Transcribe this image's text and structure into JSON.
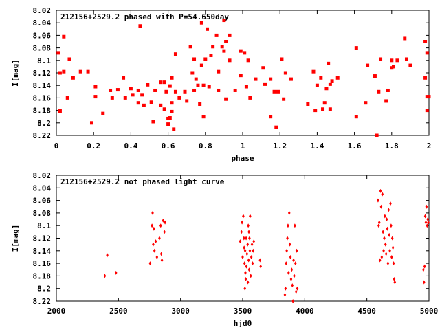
{
  "chart_data": [
    {
      "type": "scatter",
      "title": "212156+2529.2 phased with P=54.650day",
      "xlabel": "phase",
      "ylabel": "I[mag]",
      "xlim": [
        0,
        2
      ],
      "ylim": [
        8.22,
        8.02
      ],
      "y_inverted": true,
      "grid": false,
      "xticks": [
        0,
        0.2,
        0.4,
        0.6,
        0.8,
        1,
        1.2,
        1.4,
        1.6,
        1.8,
        2
      ],
      "xtick_labels": [
        "0",
        "0.2",
        "0.4",
        "0.6",
        "0.8",
        "1",
        "1.2",
        "1.4",
        "1.6",
        "1.8",
        "2"
      ],
      "yticks": [
        8.02,
        8.04,
        8.06,
        8.08,
        8.1,
        8.12,
        8.14,
        8.16,
        8.18,
        8.2,
        8.22
      ],
      "ytick_labels": [
        "8.02",
        "8.04",
        "8.06",
        "8.08",
        "8.1",
        "8.12",
        "8.14",
        "8.16",
        "8.18",
        "8.2",
        "8.22"
      ],
      "marker_color": "#ff0000",
      "points": [
        [
          0.01,
          8.088
        ],
        [
          0.02,
          8.12
        ],
        [
          0.02,
          8.181
        ],
        [
          0.04,
          8.118
        ],
        [
          0.04,
          8.062
        ],
        [
          0.06,
          8.16
        ],
        [
          0.07,
          8.098
        ],
        [
          0.09,
          8.128
        ],
        [
          0.13,
          8.118
        ],
        [
          0.17,
          8.118
        ],
        [
          0.19,
          8.2
        ],
        [
          0.21,
          8.142
        ],
        [
          0.21,
          8.158
        ],
        [
          0.25,
          8.185
        ],
        [
          0.29,
          8.148
        ],
        [
          0.3,
          8.16
        ],
        [
          0.33,
          8.147
        ],
        [
          0.36,
          8.128
        ],
        [
          0.37,
          8.16
        ],
        [
          0.4,
          8.145
        ],
        [
          0.41,
          8.155
        ],
        [
          0.44,
          8.148
        ],
        [
          0.44,
          8.168
        ],
        [
          0.45,
          8.045
        ],
        [
          0.46,
          8.155
        ],
        [
          0.47,
          8.172
        ],
        [
          0.49,
          8.139
        ],
        [
          0.51,
          8.167
        ],
        [
          0.52,
          8.198
        ],
        [
          0.53,
          8.148
        ],
        [
          0.56,
          8.172
        ],
        [
          0.56,
          8.135
        ],
        [
          0.58,
          8.135
        ],
        [
          0.58,
          8.178
        ],
        [
          0.59,
          8.15
        ],
        [
          0.6,
          8.193
        ],
        [
          0.6,
          8.202
        ],
        [
          0.61,
          8.192
        ],
        [
          0.61,
          8.141
        ],
        [
          0.62,
          8.128
        ],
        [
          0.62,
          8.168
        ],
        [
          0.62,
          8.182
        ],
        [
          0.63,
          8.21
        ],
        [
          0.64,
          8.15
        ],
        [
          0.64,
          8.09
        ],
        [
          0.66,
          8.16
        ],
        [
          0.69,
          8.15
        ],
        [
          0.7,
          8.165
        ],
        [
          0.72,
          8.078
        ],
        [
          0.73,
          8.12
        ],
        [
          0.74,
          8.098
        ],
        [
          0.74,
          8.148
        ],
        [
          0.75,
          8.13
        ],
        [
          0.76,
          8.14
        ],
        [
          0.77,
          8.17
        ],
        [
          0.78,
          8.04
        ],
        [
          0.78,
          8.108
        ],
        [
          0.79,
          8.19
        ],
        [
          0.79,
          8.14
        ],
        [
          0.8,
          8.098
        ],
        [
          0.81,
          8.05
        ],
        [
          0.82,
          8.142
        ],
        [
          0.83,
          8.092
        ],
        [
          0.84,
          8.078
        ],
        [
          0.86,
          8.06
        ],
        [
          0.87,
          8.118
        ],
        [
          0.87,
          8.148
        ],
        [
          0.89,
          8.078
        ],
        [
          0.9,
          8.036
        ],
        [
          0.9,
          8.085
        ],
        [
          0.91,
          8.07
        ],
        [
          0.91,
          8.162
        ],
        [
          0.93,
          8.06
        ],
        [
          0.93,
          8.1
        ],
        [
          0.96,
          8.148
        ],
        [
          0.99,
          8.124
        ],
        [
          0.99,
          8.085
        ],
        [
          1.01,
          8.088
        ],
        [
          1.02,
          8.142
        ],
        [
          1.03,
          8.1
        ],
        [
          1.04,
          8.16
        ],
        [
          1.07,
          8.13
        ],
        [
          1.11,
          8.112
        ],
        [
          1.12,
          8.138
        ],
        [
          1.15,
          8.19
        ],
        [
          1.15,
          8.13
        ],
        [
          1.17,
          8.15
        ],
        [
          1.18,
          8.207
        ],
        [
          1.19,
          8.15
        ],
        [
          1.21,
          8.098
        ],
        [
          1.22,
          8.162
        ],
        [
          1.23,
          8.12
        ],
        [
          1.26,
          8.13
        ],
        [
          1.35,
          8.17
        ],
        [
          1.38,
          8.118
        ],
        [
          1.39,
          8.18
        ],
        [
          1.4,
          8.14
        ],
        [
          1.42,
          8.128
        ],
        [
          1.43,
          8.178
        ],
        [
          1.44,
          8.168
        ],
        [
          1.45,
          8.145
        ],
        [
          1.46,
          8.105
        ],
        [
          1.47,
          8.138
        ],
        [
          1.47,
          8.178
        ],
        [
          1.48,
          8.133
        ],
        [
          1.51,
          8.128
        ],
        [
          1.61,
          8.19
        ],
        [
          1.61,
          8.08
        ],
        [
          1.66,
          8.168
        ],
        [
          1.67,
          8.108
        ],
        [
          1.71,
          8.125
        ],
        [
          1.72,
          8.22
        ],
        [
          1.73,
          8.15
        ],
        [
          1.74,
          8.098
        ],
        [
          1.77,
          8.165
        ],
        [
          1.78,
          8.148
        ],
        [
          1.8,
          8.112
        ],
        [
          1.8,
          8.1
        ],
        [
          1.81,
          8.11
        ],
        [
          1.83,
          8.1
        ],
        [
          1.87,
          8.065
        ],
        [
          1.88,
          8.098
        ],
        [
          1.9,
          8.108
        ],
        [
          1.98,
          8.07
        ],
        [
          1.99,
          8.158
        ],
        [
          1.99,
          8.18
        ],
        [
          2.0,
          8.158
        ],
        [
          1.99,
          8.088
        ],
        [
          1.98,
          8.128
        ]
      ]
    },
    {
      "type": "scatter",
      "title": "212156+2529.2 not phased light curve",
      "xlabel": "hjd0",
      "ylabel": "I[mag]",
      "xlim": [
        2000,
        5000
      ],
      "ylim": [
        8.22,
        8.02
      ],
      "y_inverted": true,
      "grid": false,
      "xticks": [
        2000,
        2500,
        3000,
        3500,
        4000,
        4500,
        5000
      ],
      "xtick_labels": [
        "2000",
        "2500",
        "3000",
        "3500",
        "4000",
        "4500",
        "5000"
      ],
      "yticks": [
        8.02,
        8.04,
        8.06,
        8.08,
        8.1,
        8.12,
        8.14,
        8.16,
        8.18,
        8.2,
        8.22
      ],
      "ytick_labels": [
        "8.02",
        "8.04",
        "8.06",
        "8.08",
        "8.1",
        "8.12",
        "8.14",
        "8.16",
        "8.18",
        "8.2",
        "8.22"
      ],
      "marker_color": "#ff0000",
      "points": [
        [
          2390,
          8.18
        ],
        [
          2410,
          8.147
        ],
        [
          2480,
          8.175
        ],
        [
          2755,
          8.16
        ],
        [
          2770,
          8.1
        ],
        [
          2775,
          8.08
        ],
        [
          2780,
          8.13
        ],
        [
          2785,
          8.105
        ],
        [
          2790,
          8.14
        ],
        [
          2800,
          8.125
        ],
        [
          2810,
          8.15
        ],
        [
          2830,
          8.12
        ],
        [
          2840,
          8.1
        ],
        [
          2845,
          8.145
        ],
        [
          2850,
          8.155
        ],
        [
          2860,
          8.092
        ],
        [
          2870,
          8.11
        ],
        [
          2875,
          8.095
        ],
        [
          3480,
          8.125
        ],
        [
          3490,
          8.11
        ],
        [
          3495,
          8.095
        ],
        [
          3500,
          8.15
        ],
        [
          3505,
          8.085
        ],
        [
          3510,
          8.12
        ],
        [
          3512,
          8.135
        ],
        [
          3515,
          8.16
        ],
        [
          3518,
          8.2
        ],
        [
          3520,
          8.14
        ],
        [
          3522,
          8.175
        ],
        [
          3525,
          8.185
        ],
        [
          3528,
          8.12
        ],
        [
          3530,
          8.165
        ],
        [
          3535,
          8.145
        ],
        [
          3540,
          8.13
        ],
        [
          3542,
          8.19
        ],
        [
          3545,
          8.1
        ],
        [
          3548,
          8.155
        ],
        [
          3550,
          8.11
        ],
        [
          3552,
          8.17
        ],
        [
          3555,
          8.12
        ],
        [
          3558,
          8.14
        ],
        [
          3560,
          8.085
        ],
        [
          3565,
          8.18
        ],
        [
          3570,
          8.15
        ],
        [
          3575,
          8.13
        ],
        [
          3580,
          8.16
        ],
        [
          3585,
          8.14
        ],
        [
          3590,
          8.125
        ],
        [
          3640,
          8.155
        ],
        [
          3645,
          8.165
        ],
        [
          3840,
          8.21
        ],
        [
          3845,
          8.2
        ],
        [
          3850,
          8.16
        ],
        [
          3855,
          8.14
        ],
        [
          3860,
          8.12
        ],
        [
          3865,
          8.1
        ],
        [
          3870,
          8.175
        ],
        [
          3875,
          8.08
        ],
        [
          3880,
          8.13
        ],
        [
          3885,
          8.15
        ],
        [
          3890,
          8.185
        ],
        [
          3895,
          8.17
        ],
        [
          3900,
          8.195
        ],
        [
          3905,
          8.22
        ],
        [
          3910,
          8.155
        ],
        [
          3915,
          8.18
        ],
        [
          3920,
          8.1
        ],
        [
          3925,
          8.16
        ],
        [
          3930,
          8.205
        ],
        [
          3935,
          8.14
        ],
        [
          3940,
          8.2
        ],
        [
          4590,
          8.06
        ],
        [
          4595,
          8.1
        ],
        [
          4600,
          8.095
        ],
        [
          4605,
          8.155
        ],
        [
          4610,
          8.045
        ],
        [
          4615,
          8.07
        ],
        [
          4620,
          8.15
        ],
        [
          4625,
          8.05
        ],
        [
          4630,
          8.11
        ],
        [
          4635,
          8.14
        ],
        [
          4640,
          8.12
        ],
        [
          4645,
          8.085
        ],
        [
          4650,
          8.13
        ],
        [
          4655,
          8.145
        ],
        [
          4660,
          8.09
        ],
        [
          4665,
          8.105
        ],
        [
          4670,
          8.16
        ],
        [
          4675,
          8.075
        ],
        [
          4680,
          8.115
        ],
        [
          4685,
          8.14
        ],
        [
          4690,
          8.065
        ],
        [
          4695,
          8.1
        ],
        [
          4700,
          8.15
        ],
        [
          4705,
          8.12
        ],
        [
          4710,
          8.135
        ],
        [
          4715,
          8.16
        ],
        [
          4720,
          8.185
        ],
        [
          4725,
          8.19
        ],
        [
          4955,
          8.17
        ],
        [
          4960,
          8.19
        ],
        [
          4965,
          8.165
        ],
        [
          4970,
          8.085
        ],
        [
          4975,
          8.095
        ],
        [
          4980,
          8.07
        ],
        [
          4985,
          8.1
        ],
        [
          4990,
          8.09
        ],
        [
          4995,
          8.095
        ]
      ]
    }
  ]
}
